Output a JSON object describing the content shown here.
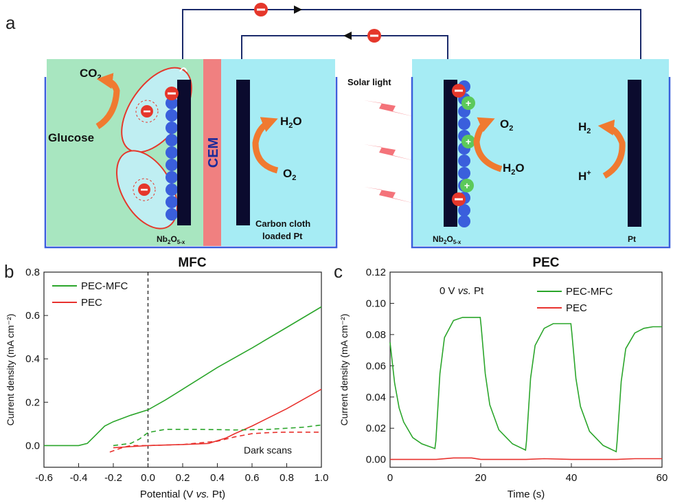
{
  "panel_a": {
    "label": "a",
    "mfc_label": "MFC",
    "pec_label": "PEC",
    "cem_label": "CEM",
    "solar_label": "Solar light",
    "co2": "CO",
    "co2_sub": "2",
    "glucose": "Glucose",
    "h2o_left": "H",
    "h2o_left_sub": "2",
    "h2o_left_tail": "O",
    "o2_left": "O",
    "o2_left_sub": "2",
    "nb_left": "Nb",
    "nb_sub1": "2",
    "nb_mid": "O",
    "nb_sub2": "5-x",
    "carbon1": "Carbon cloth",
    "carbon2": "loaded Pt",
    "o2_right": "O",
    "o2_right_sub": "2",
    "h2o_right": "H",
    "h2o_right_sub": "2",
    "h2o_right_tail": "O",
    "h2": "H",
    "h2_sub": "2",
    "hplus": "H",
    "hplus_sup": "+",
    "pt_label": "Pt",
    "colors": {
      "mfc_bg": "#a8e6c0",
      "cell_bg": "#a6ecf4",
      "cem": "#f08080",
      "electrode": "#0b0b2e",
      "arrow": "#f07a30",
      "bolt": "#f4737a",
      "electron": "#e5372b",
      "hole": "#5cc95a",
      "bead": "#3a5fdc"
    }
  },
  "panel_b": {
    "label": "b",
    "dark_scans": "Dark scans"
  },
  "panel_c": {
    "label": "c",
    "annotation_pre": "0 V ",
    "annotation_italic": "vs.",
    "annotation_post": " Pt"
  },
  "chart_data": [
    {
      "type": "line",
      "panel": "b",
      "xlabel": "Potential (V vs. Pt)",
      "ylabel": "Current density (mA cm⁻²)",
      "xlim": [
        -0.6,
        1.0
      ],
      "ylim": [
        -0.1,
        0.8
      ],
      "xticks": [
        "-0.6",
        "-0.4",
        "-0.2",
        "0.0",
        "0.2",
        "0.4",
        "0.6",
        "0.8",
        "1.0"
      ],
      "yticks": [
        "0.0",
        "0.2",
        "0.4",
        "0.6",
        "0.8"
      ],
      "legend_position": "top-left",
      "reference_line_x": 0.0,
      "series": [
        {
          "name": "PEC-MFC",
          "color": "#2aa52a",
          "style": "solid",
          "x": [
            -0.6,
            -0.4,
            -0.35,
            -0.3,
            -0.25,
            -0.2,
            -0.1,
            0.0,
            0.1,
            0.2,
            0.4,
            0.6,
            0.8,
            1.0
          ],
          "y": [
            0.0,
            0.0,
            0.01,
            0.05,
            0.09,
            0.11,
            0.14,
            0.165,
            0.21,
            0.26,
            0.36,
            0.45,
            0.545,
            0.64
          ]
        },
        {
          "name": "PEC",
          "color": "#e8312d",
          "style": "solid",
          "x": [
            -0.2,
            -0.1,
            0.0,
            0.2,
            0.35,
            0.45,
            0.5,
            0.6,
            0.8,
            1.0
          ],
          "y": [
            -0.01,
            -0.005,
            0.0,
            0.005,
            0.01,
            0.035,
            0.055,
            0.09,
            0.17,
            0.26
          ]
        },
        {
          "name": "",
          "color": "#2aa52a",
          "style": "dashed",
          "x": [
            -0.2,
            -0.1,
            -0.05,
            0.0,
            0.1,
            0.3,
            0.5,
            0.7,
            0.9,
            1.0
          ],
          "y": [
            0.0,
            0.01,
            0.03,
            0.06,
            0.075,
            0.075,
            0.072,
            0.075,
            0.085,
            0.095
          ]
        },
        {
          "name": "",
          "color": "#e8312d",
          "style": "dashed",
          "x": [
            -0.22,
            -0.15,
            -0.1,
            0.0,
            0.2,
            0.4,
            0.5,
            0.6,
            0.7,
            0.8,
            1.0
          ],
          "y": [
            -0.03,
            -0.01,
            0.0,
            0.0,
            0.005,
            0.02,
            0.04,
            0.055,
            0.06,
            0.062,
            0.062
          ]
        }
      ]
    },
    {
      "type": "line",
      "panel": "c",
      "xlabel": "Time (s)",
      "ylabel": "Current density (mA cm⁻²)",
      "xlim": [
        0,
        60
      ],
      "ylim": [
        -0.005,
        0.12
      ],
      "xticks": [
        "0",
        "20",
        "40",
        "60"
      ],
      "yticks": [
        "0.00",
        "0.02",
        "0.04",
        "0.06",
        "0.08",
        "0.10",
        "0.12"
      ],
      "legend_position": "top-right",
      "series": [
        {
          "name": "PEC-MFC",
          "color": "#2aa52a",
          "style": "solid",
          "x": [
            0,
            1,
            2,
            3,
            5,
            7,
            9.9,
            10.1,
            11,
            12,
            14,
            16,
            19.9,
            20.1,
            21,
            22,
            24,
            27,
            29.9,
            30.1,
            31,
            32,
            34,
            36,
            39.9,
            40.1,
            41,
            42,
            44,
            47,
            49.9,
            50.1,
            51,
            52,
            54,
            56,
            58,
            60
          ],
          "y": [
            0.075,
            0.049,
            0.033,
            0.024,
            0.014,
            0.01,
            0.007,
            0.012,
            0.055,
            0.078,
            0.089,
            0.091,
            0.091,
            0.085,
            0.055,
            0.035,
            0.019,
            0.01,
            0.006,
            0.012,
            0.052,
            0.073,
            0.084,
            0.087,
            0.087,
            0.081,
            0.052,
            0.034,
            0.018,
            0.009,
            0.005,
            0.012,
            0.05,
            0.071,
            0.081,
            0.084,
            0.085,
            0.085
          ]
        },
        {
          "name": "PEC",
          "color": "#e8312d",
          "style": "solid",
          "x": [
            0,
            10,
            14,
            18,
            20,
            30,
            34,
            40,
            50,
            54,
            60
          ],
          "y": [
            0.0,
            0.0,
            0.001,
            0.001,
            0.0,
            0.0,
            0.0005,
            0.0,
            0.0,
            0.0005,
            0.0005
          ]
        }
      ]
    }
  ]
}
